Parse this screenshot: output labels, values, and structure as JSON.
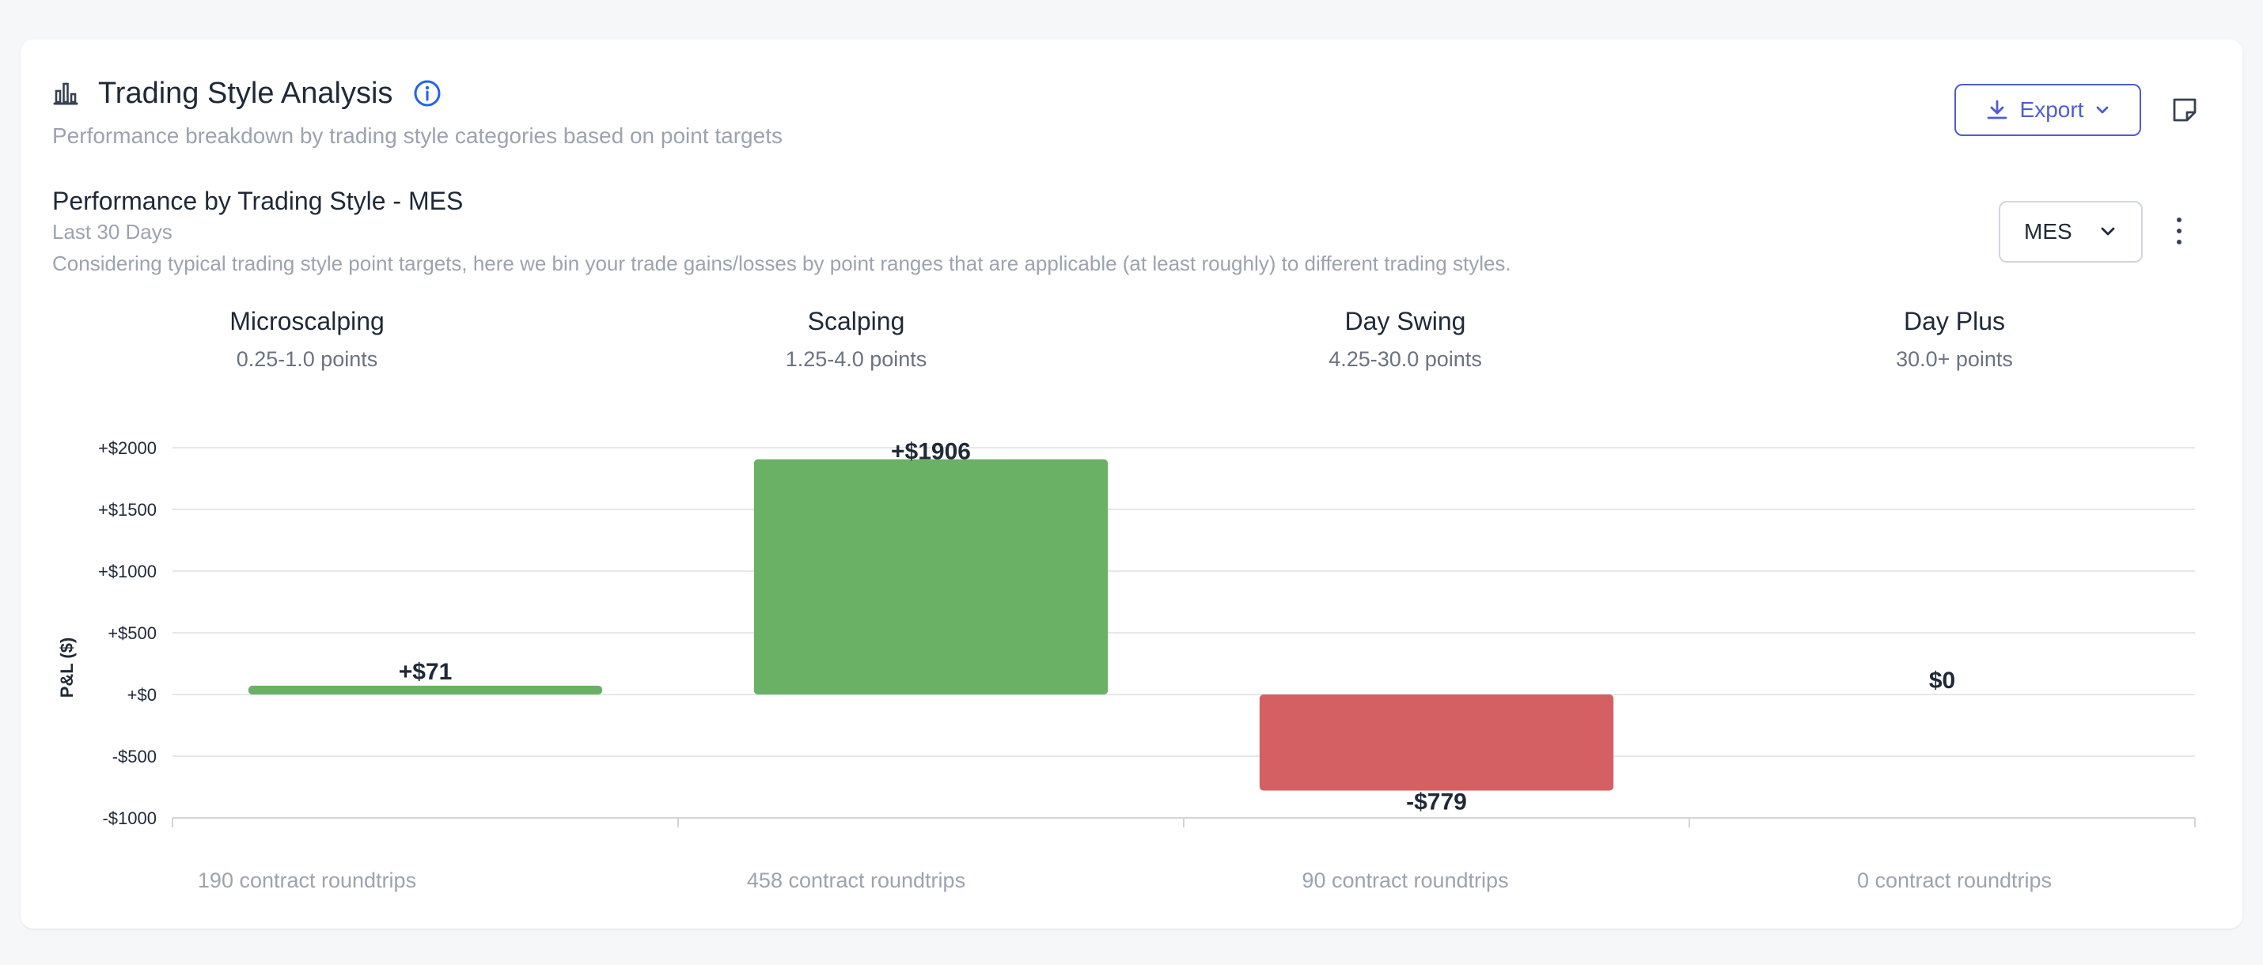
{
  "header": {
    "title": "Trading Style Analysis",
    "subtitle": "Performance breakdown by trading style categories based on point targets",
    "chart_icon": "bar-chart-icon",
    "info_icon": "info-icon"
  },
  "toolbar": {
    "export_label": "Export",
    "export_icon": "download-icon",
    "note_icon": "sticky-note-icon"
  },
  "section": {
    "title": "Performance by Trading Style - MES",
    "range": "Last 30 Days",
    "description": "Considering typical trading style point targets, here we bin your trade gains/losses by point ranges that are applicable (at least roughly) to different trading styles.",
    "symbol": "MES",
    "menu_icon": "more-vertical-icon"
  },
  "categories": [
    {
      "name": "Microscalping",
      "range": "0.25-1.0 points",
      "roundtrips": "190 contract roundtrips"
    },
    {
      "name": "Scalping",
      "range": "1.25-4.0 points",
      "roundtrips": "458 contract roundtrips"
    },
    {
      "name": "Day Swing",
      "range": "4.25-30.0 points",
      "roundtrips": "90 contract roundtrips"
    },
    {
      "name": "Day Plus",
      "range": "30.0+ points",
      "roundtrips": "0 contract roundtrips"
    }
  ],
  "colors": {
    "positive": "#6ab165",
    "negative": "#d56063",
    "accent": "#4f5bd5",
    "info": "#2563eb"
  },
  "chart_data": {
    "type": "bar",
    "categories": [
      "Microscalping",
      "Scalping",
      "Day Swing",
      "Day Plus"
    ],
    "values": [
      71,
      1906,
      -779,
      0
    ],
    "data_labels": [
      "+$71",
      "+$1906",
      "-$779",
      "$0"
    ],
    "ylabel": "P&L ($)",
    "ylim": [
      -1000,
      2000
    ],
    "yticks": [
      2000,
      1500,
      1000,
      500,
      0,
      -500,
      -1000
    ],
    "ytick_labels": [
      "+$2000",
      "+$1500",
      "+$1000",
      "+$500",
      "+$0",
      "-$500",
      "-$1000"
    ],
    "grid": true
  }
}
